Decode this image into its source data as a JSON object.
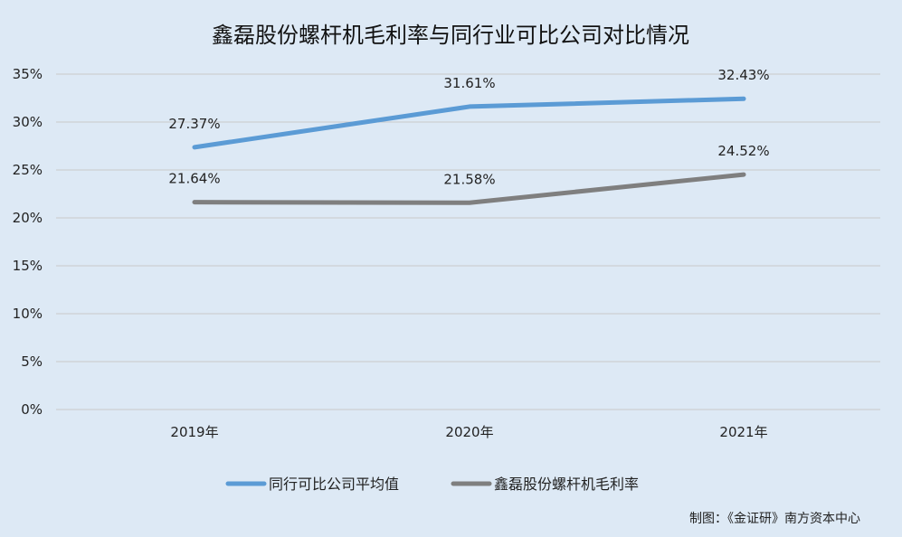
{
  "chart_data": {
    "type": "line",
    "title": "鑫磊股份螺杆机毛利率与同行业可比公司对比情况",
    "xlabel": "",
    "ylabel": "",
    "categories": [
      "2019年",
      "2020年",
      "2021年"
    ],
    "ylim": [
      0,
      35
    ],
    "yticks": [
      "0%",
      "5%",
      "10%",
      "15%",
      "20%",
      "25%",
      "30%",
      "35%"
    ],
    "ytick_values": [
      0,
      5,
      10,
      15,
      20,
      25,
      30,
      35
    ],
    "grid": true,
    "legend_position": "bottom",
    "series": [
      {
        "name": "同行可比公司平均值",
        "values": [
          27.37,
          31.61,
          32.43
        ],
        "labels": [
          "27.37%",
          "31.61%",
          "32.43%"
        ],
        "color": "#5b9bd5"
      },
      {
        "name": "鑫磊股份螺杆机毛利率",
        "values": [
          21.64,
          21.58,
          24.52
        ],
        "labels": [
          "21.64%",
          "21.58%",
          "24.52%"
        ],
        "color": "#7f7f7f"
      }
    ]
  },
  "credit": "制图：《金证研》南方资本中心"
}
